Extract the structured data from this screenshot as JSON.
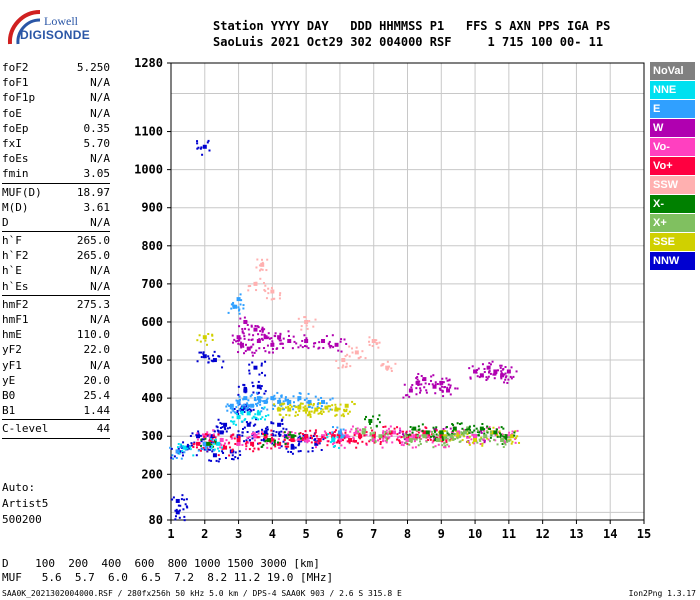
{
  "logo": {
    "line1": "Lowell",
    "line2": "DIGISONDE"
  },
  "header": {
    "labels_line": "Station YYYY DAY   DDD HHMMSS P1   FFS S AXN PPS IGA PS",
    "values_line": "SaoLuis 2021 Oct29 302 004000 RSF     1 715 100 00- 11"
  },
  "params": [
    {
      "name": "foF2",
      "value": "5.250"
    },
    {
      "name": "foF1",
      "value": "N/A"
    },
    {
      "name": "foF1p",
      "value": "N/A"
    },
    {
      "name": "foE",
      "value": "N/A"
    },
    {
      "name": "foEp",
      "value": "0.35"
    },
    {
      "name": "fxI",
      "value": "5.70"
    },
    {
      "name": "foEs",
      "value": "N/A"
    },
    {
      "name": "fmin",
      "value": "3.05"
    },
    {
      "sep": true
    },
    {
      "name": "MUF(D)",
      "value": "18.97"
    },
    {
      "name": "M(D)",
      "value": "3.61"
    },
    {
      "name": "D",
      "value": "N/A"
    },
    {
      "sep": true
    },
    {
      "name": "h`F",
      "value": "265.0"
    },
    {
      "name": "h`F2",
      "value": "265.0"
    },
    {
      "name": "h`E",
      "value": "N/A"
    },
    {
      "name": "h`Es",
      "value": "N/A"
    },
    {
      "sep": true
    },
    {
      "name": "hmF2",
      "value": "275.3"
    },
    {
      "name": "hmF1",
      "value": "N/A"
    },
    {
      "name": "hmE",
      "value": "110.0"
    },
    {
      "name": "yF2",
      "value": "22.0"
    },
    {
      "name": "yF1",
      "value": "N/A"
    },
    {
      "name": "yE",
      "value": "20.0"
    },
    {
      "name": "B0",
      "value": "25.4"
    },
    {
      "name": "B1",
      "value": "1.44"
    },
    {
      "sep": true
    },
    {
      "name": "C-level",
      "value": "44"
    },
    {
      "sep": true
    }
  ],
  "autoscaling": {
    "line1": "Auto:",
    "line2": "Artist5",
    "line3": "500200"
  },
  "legend": [
    {
      "label": "NoVal",
      "color": "#808080"
    },
    {
      "label": "NNE",
      "color": "#00e0f0"
    },
    {
      "label": "E",
      "color": "#30a0ff"
    },
    {
      "label": "W",
      "color": "#b000b0"
    },
    {
      "label": "Vo-",
      "color": "#ff40c0"
    },
    {
      "label": "Vo+",
      "color": "#ff0040"
    },
    {
      "label": "SSW",
      "color": "#ffb0b0"
    },
    {
      "label": "X-",
      "color": "#008000"
    },
    {
      "label": "X+",
      "color": "#80c060"
    },
    {
      "label": "SSE",
      "color": "#d0d000"
    },
    {
      "label": "NNW",
      "color": "#0000d0"
    }
  ],
  "muf_table": {
    "d_line": "D    100  200  400  600  800 1000 1500 3000 [km]",
    "muf_line": "MUF   5.6  5.7  6.0  6.5  7.2  8.2 11.2 19.0 [MHz]"
  },
  "footer": {
    "text": "SAA0K_2021302004000.RSF / 280fx256h 50 kHz 5.0 km / DPS-4 SAA0K 903 / 2.6 S 315.8 E",
    "version": "Ion2Png 1.3.17"
  },
  "chart_data": {
    "type": "scatter",
    "title": "",
    "xlabel": "",
    "ylabel": "",
    "x_ticks": [
      1,
      2,
      3,
      4,
      5,
      6,
      7,
      8,
      9,
      10,
      11,
      12,
      13,
      14,
      15
    ],
    "y_ticks": [
      80,
      200,
      300,
      400,
      500,
      600,
      700,
      800,
      900,
      1000,
      1100,
      1280
    ],
    "xlim": [
      1,
      15
    ],
    "ylim": [
      80,
      1280
    ],
    "grid": true,
    "series": [
      {
        "name": "NNW",
        "color": "#0000d0",
        "points": [
          [
            1.2,
            260
          ],
          [
            1.5,
            270
          ],
          [
            1.8,
            300
          ],
          [
            2.0,
            280
          ],
          [
            2.2,
            300
          ],
          [
            2.3,
            250
          ],
          [
            2.5,
            310
          ],
          [
            2.6,
            330
          ],
          [
            2.8,
            260
          ],
          [
            3.0,
            300
          ],
          [
            3.1,
            370
          ],
          [
            3.2,
            420
          ],
          [
            3.3,
            330
          ],
          [
            3.5,
            300
          ],
          [
            3.6,
            430
          ],
          [
            3.8,
            310
          ],
          [
            4.0,
            290
          ],
          [
            4.2,
            330
          ],
          [
            4.4,
            300
          ],
          [
            4.6,
            270
          ],
          [
            4.8,
            290
          ],
          [
            5.0,
            300
          ],
          [
            5.3,
            280
          ],
          [
            2.0,
            1060
          ],
          [
            1.2,
            130
          ],
          [
            1.2,
            100
          ],
          [
            2.0,
            510
          ],
          [
            2.3,
            500
          ],
          [
            3.2,
            380
          ],
          [
            3.5,
            480
          ]
        ]
      },
      {
        "name": "W",
        "color": "#b000b0",
        "points": [
          [
            3.0,
            560
          ],
          [
            3.1,
            540
          ],
          [
            3.2,
            600
          ],
          [
            3.3,
            530
          ],
          [
            3.5,
            580
          ],
          [
            3.6,
            550
          ],
          [
            3.8,
            560
          ],
          [
            4.0,
            540
          ],
          [
            4.2,
            560
          ],
          [
            4.5,
            550
          ],
          [
            5.0,
            550
          ],
          [
            5.5,
            550
          ],
          [
            5.9,
            540
          ],
          [
            8.1,
            420
          ],
          [
            8.3,
            440
          ],
          [
            8.5,
            450
          ],
          [
            8.8,
            430
          ],
          [
            9.0,
            440
          ],
          [
            9.2,
            420
          ],
          [
            10.0,
            470
          ],
          [
            10.2,
            460
          ],
          [
            10.4,
            480
          ],
          [
            10.6,
            470
          ],
          [
            10.8,
            460
          ],
          [
            11.0,
            470
          ],
          [
            8.0,
            300
          ],
          [
            9.0,
            310
          ],
          [
            10.0,
            300
          ]
        ]
      },
      {
        "name": "Vo-",
        "color": "#ff40c0",
        "points": [
          [
            2.0,
            300
          ],
          [
            2.5,
            290
          ],
          [
            3.0,
            280
          ],
          [
            3.5,
            300
          ],
          [
            4.0,
            290
          ],
          [
            4.5,
            300
          ],
          [
            5.0,
            290
          ],
          [
            5.5,
            300
          ],
          [
            6.0,
            290
          ],
          [
            6.2,
            300
          ],
          [
            6.5,
            310
          ],
          [
            7.0,
            290
          ],
          [
            7.3,
            300
          ],
          [
            7.6,
            310
          ],
          [
            8.0,
            290
          ],
          [
            8.2,
            300
          ],
          [
            8.6,
            300
          ],
          [
            9.0,
            290
          ],
          [
            9.5,
            310
          ],
          [
            10.0,
            300
          ],
          [
            10.5,
            310
          ],
          [
            11.0,
            300
          ]
        ]
      },
      {
        "name": "Vo+",
        "color": "#ff0040",
        "points": [
          [
            1.8,
            280
          ],
          [
            2.2,
            290
          ],
          [
            2.6,
            270
          ],
          [
            3.0,
            290
          ],
          [
            3.4,
            280
          ],
          [
            3.8,
            300
          ],
          [
            4.2,
            280
          ],
          [
            4.6,
            290
          ],
          [
            5.0,
            300
          ],
          [
            5.4,
            290
          ],
          [
            5.8,
            300
          ],
          [
            6.0,
            300
          ],
          [
            6.3,
            290
          ],
          [
            6.6,
            300
          ],
          [
            7.0,
            300
          ],
          [
            7.5,
            310
          ],
          [
            8.0,
            300
          ],
          [
            8.5,
            310
          ],
          [
            9.0,
            300
          ]
        ]
      },
      {
        "name": "E",
        "color": "#30a0ff",
        "points": [
          [
            2.8,
            380
          ],
          [
            3.0,
            390
          ],
          [
            3.2,
            400
          ],
          [
            3.4,
            380
          ],
          [
            3.6,
            400
          ],
          [
            3.8,
            390
          ],
          [
            4.0,
            400
          ],
          [
            4.2,
            390
          ],
          [
            4.5,
            390
          ],
          [
            4.8,
            400
          ],
          [
            5.1,
            390
          ],
          [
            5.5,
            390
          ],
          [
            1.2,
            260
          ],
          [
            2.0,
            280
          ],
          [
            6.0,
            310
          ],
          [
            2.9,
            640
          ],
          [
            3.0,
            660
          ]
        ]
      },
      {
        "name": "SSE",
        "color": "#d0d000",
        "points": [
          [
            4.2,
            370
          ],
          [
            4.5,
            370
          ],
          [
            4.8,
            375
          ],
          [
            5.0,
            370
          ],
          [
            5.3,
            370
          ],
          [
            5.6,
            375
          ],
          [
            5.9,
            370
          ],
          [
            6.2,
            380
          ],
          [
            9.1,
            300
          ],
          [
            9.5,
            300
          ],
          [
            10.0,
            290
          ],
          [
            10.5,
            310
          ],
          [
            11.1,
            300
          ],
          [
            2.0,
            560
          ]
        ]
      },
      {
        "name": "X-",
        "color": "#008000",
        "points": [
          [
            8.2,
            320
          ],
          [
            8.6,
            310
          ],
          [
            9.0,
            310
          ],
          [
            9.4,
            320
          ],
          [
            9.8,
            320
          ],
          [
            10.2,
            320
          ],
          [
            10.6,
            310
          ],
          [
            10.9,
            300
          ],
          [
            2.1,
            280
          ],
          [
            3.9,
            290
          ],
          [
            4.6,
            300
          ],
          [
            6.9,
            340
          ]
        ]
      },
      {
        "name": "X+",
        "color": "#80c060",
        "points": [
          [
            8.1,
            290
          ],
          [
            8.5,
            300
          ],
          [
            8.9,
            290
          ],
          [
            9.3,
            300
          ],
          [
            9.7,
            310
          ],
          [
            10.3,
            300
          ],
          [
            10.8,
            290
          ],
          [
            6.7,
            310
          ],
          [
            7.2,
            300
          ]
        ]
      },
      {
        "name": "NNE",
        "color": "#00e0f0",
        "points": [
          [
            1.4,
            270
          ],
          [
            2.4,
            280
          ],
          [
            3.0,
            350
          ],
          [
            3.3,
            360
          ],
          [
            3.6,
            360
          ],
          [
            5.8,
            290
          ]
        ]
      },
      {
        "name": "SSW",
        "color": "#ffb0b0",
        "points": [
          [
            3.5,
            700
          ],
          [
            3.7,
            750
          ],
          [
            4.0,
            680
          ],
          [
            5.0,
            600
          ],
          [
            6.1,
            500
          ],
          [
            6.5,
            520
          ],
          [
            7.0,
            550
          ],
          [
            7.4,
            480
          ]
        ]
      }
    ]
  }
}
